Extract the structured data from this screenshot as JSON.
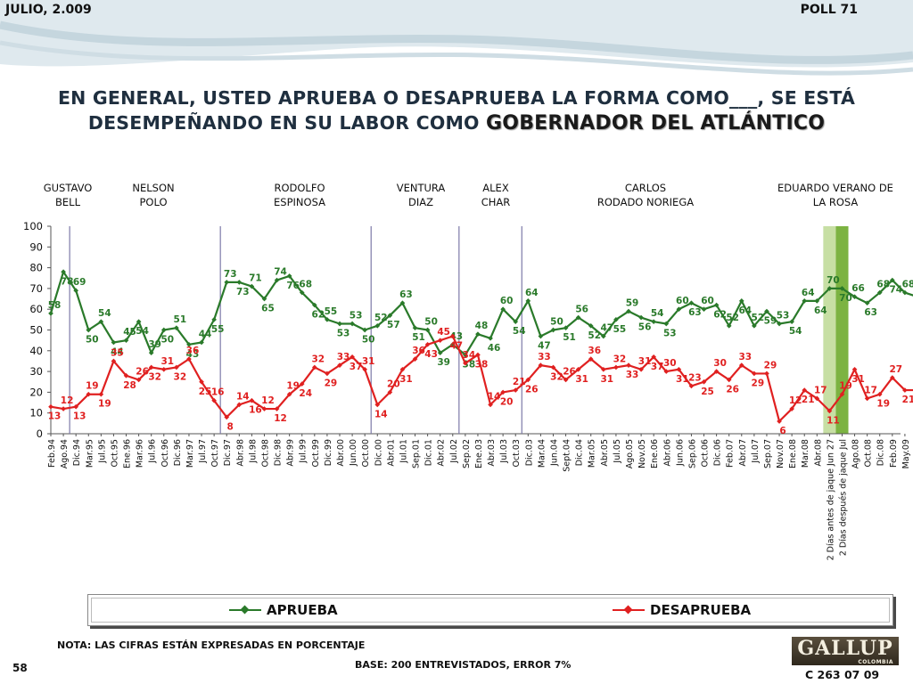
{
  "header": {
    "date": "JULIO, 2.009",
    "poll": "POLL 71"
  },
  "title": {
    "line1": "EN GENERAL, USTED APRUEBA O DESAPRUEBA LA FORMA COMO___, SE ESTÁ",
    "line2_prefix": "DESEMPEÑANDO EN SU LABOR COMO ",
    "line2_highlight": "GOBERNADOR DEL ATLÁNTICO"
  },
  "governors": [
    {
      "line1": "GUSTAVO",
      "line2": "BELL"
    },
    {
      "line1": "NELSON",
      "line2": "POLO"
    },
    {
      "line1": "RODOLFO",
      "line2": "ESPINOSA"
    },
    {
      "line1": "VENTURA",
      "line2": "DIAZ"
    },
    {
      "line1": "ALEX",
      "line2": "CHAR"
    },
    {
      "line1": "CARLOS",
      "line2": "RODADO NORIEGA"
    },
    {
      "line1": "EDUARDO VERANO DE",
      "line2": "LA ROSA"
    }
  ],
  "chart_data": {
    "type": "line",
    "ylim": [
      0,
      100
    ],
    "yticks": [
      0,
      10,
      20,
      30,
      40,
      50,
      60,
      70,
      80,
      90,
      100
    ],
    "x_tick_labels": [
      "Feb.94",
      "Ago.94",
      "Dic.94",
      "Mar.95",
      "Jul.95",
      "Oct.95",
      "Ene.96",
      "Mar.96",
      "Jul.96",
      "Oct.96",
      "Dic.96",
      "Mar.97",
      "Jul.97",
      "Oct.97",
      "Dic.97",
      "Abr.98",
      "Jul.98",
      "Oct.98",
      "Dic.98",
      "Abr.99",
      "Jul.99",
      "Oct.99",
      "Dic.99",
      "Abr.00",
      "Jun.00",
      "Oct.00",
      "Dic.00",
      "Abr.01",
      "Jul.01",
      "Sep.01",
      "Dic.01",
      "Abr.02",
      "Jul.02",
      "Sep.02",
      "Ene.03",
      "Abr.03",
      "Jul.03",
      "Oct.03",
      "Dic.03",
      "Mar.04",
      "Jun.04",
      "Sept.04",
      "Dic.04",
      "Mar.05",
      "Abr.05",
      "Jul.05",
      "Ago.05",
      "Nov.05",
      "Ene.06",
      "Abr.06",
      "Jun.06",
      "Sep.06",
      "Oct.06",
      "Dic.06",
      "Feb.07",
      "Abr.07",
      "Jul.07",
      "Sep.07",
      "Nov.07",
      "Ene.08",
      "Mar.08",
      "Abr.08",
      "2 Días antes de jaque Jun 27",
      "2 Días después de jaque Jul",
      "Ago.08",
      "Oct.08",
      "Dic.08",
      "Feb.09",
      "May.09",
      "Jul.09"
    ],
    "series": [
      {
        "name": "APRUEBA",
        "color": "#2a7a2a",
        "values": [
          58,
          78,
          69,
          50,
          54,
          44,
          45,
          54,
          39,
          50,
          51,
          43,
          44,
          55,
          73,
          73,
          71,
          65,
          74,
          76,
          68,
          62,
          55,
          53,
          53,
          50,
          52,
          57,
          63,
          51,
          50,
          39,
          43,
          38,
          48,
          46,
          60,
          54,
          64,
          47,
          50,
          51,
          56,
          52,
          47,
          55,
          59,
          56,
          54,
          53,
          60,
          63,
          60,
          62,
          52,
          64,
          52,
          59,
          53,
          54,
          64,
          64,
          70,
          70,
          66,
          63,
          68,
          74,
          68,
          66
        ]
      },
      {
        "name": "DESAPRUEBA",
        "color": "#e02020",
        "values": [
          13,
          12,
          13,
          19,
          19,
          35,
          28,
          26,
          32,
          31,
          32,
          36,
          25,
          16,
          8,
          14,
          16,
          12,
          12,
          19,
          24,
          32,
          29,
          33,
          37,
          31,
          14,
          20,
          31,
          36,
          43,
          45,
          47,
          34,
          38,
          14,
          20,
          21,
          26,
          33,
          32,
          26,
          31,
          36,
          31,
          32,
          33,
          31,
          37,
          30,
          31,
          23,
          25,
          30,
          26,
          33,
          29,
          29,
          6,
          12,
          21,
          17,
          11,
          19,
          31,
          17,
          19,
          27,
          21,
          21
        ]
      }
    ],
    "legend_position": "bottom",
    "highlight_columns": [
      "2 Días antes de jaque Jun 27",
      "2 Días después de jaque Jul"
    ]
  },
  "legend": {
    "approve": "APRUEBA",
    "disapprove": "DESAPRUEBA"
  },
  "footer": {
    "note": "NOTA: LAS CIFRAS ESTÁN EXPRESADAS EN PORCENTAJE",
    "base": "BASE: 200 ENTREVISTADOS, ERROR 7%",
    "page": "58",
    "code": "C 263 07 09",
    "logo": "GALLUP",
    "logo_sub": "COLOMBIA"
  }
}
